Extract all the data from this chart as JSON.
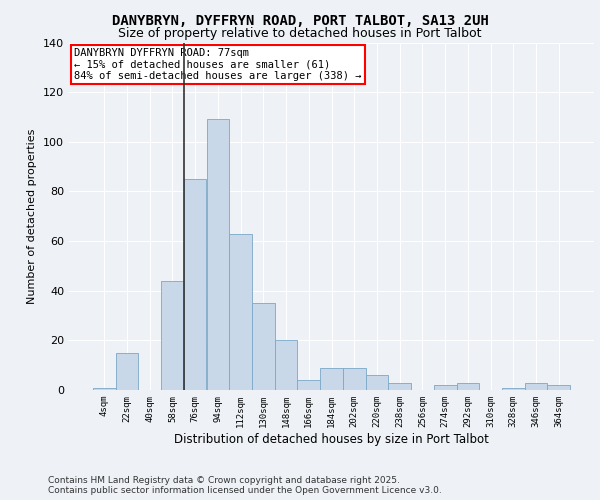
{
  "title1": "DANYBRYN, DYFFRYN ROAD, PORT TALBOT, SA13 2UH",
  "title2": "Size of property relative to detached houses in Port Talbot",
  "xlabel": "Distribution of detached houses by size in Port Talbot",
  "ylabel": "Number of detached properties",
  "categories": [
    "4sqm",
    "22sqm",
    "40sqm",
    "58sqm",
    "76sqm",
    "94sqm",
    "112sqm",
    "130sqm",
    "148sqm",
    "166sqm",
    "184sqm",
    "202sqm",
    "220sqm",
    "238sqm",
    "256sqm",
    "274sqm",
    "292sqm",
    "310sqm",
    "328sqm",
    "346sqm",
    "364sqm"
  ],
  "values": [
    1,
    15,
    0,
    44,
    85,
    109,
    63,
    35,
    20,
    4,
    9,
    9,
    6,
    3,
    0,
    2,
    3,
    0,
    1,
    3,
    2
  ],
  "bar_color": "#c8d8e8",
  "bar_edge_color": "#7aa8c8",
  "subject_line_color": "#333333",
  "annotation_line1": "DANYBRYN DYFFRYN ROAD: 77sqm",
  "annotation_line2": "← 15% of detached houses are smaller (61)",
  "annotation_line3": "84% of semi-detached houses are larger (338) →",
  "ylim": [
    0,
    140
  ],
  "yticks": [
    0,
    20,
    40,
    60,
    80,
    100,
    120,
    140
  ],
  "background_color": "#eef2f7",
  "grid_color": "#ffffff",
  "footer_text": "Contains HM Land Registry data © Crown copyright and database right 2025.\nContains public sector information licensed under the Open Government Licence v3.0."
}
